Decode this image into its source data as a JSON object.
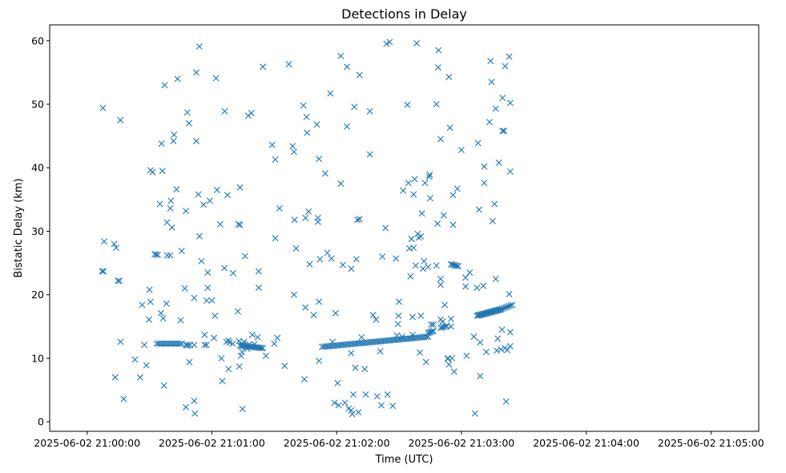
{
  "chart_data": {
    "type": "scatter",
    "title": "Detections in Delay",
    "xlabel": "Time (UTC)",
    "ylabel": "Bistatic Delay (km)",
    "marker": "x",
    "color": "#1f77b4",
    "grid": false,
    "xlim_seconds": [
      -18,
      323
    ],
    "ylim": [
      -1.5,
      62.5
    ],
    "x_ticks": [
      {
        "t": 0,
        "label": "2025-06-02 21:00:00"
      },
      {
        "t": 60,
        "label": "2025-06-02 21:01:00"
      },
      {
        "t": 120,
        "label": "2025-06-02 21:02:00"
      },
      {
        "t": 180,
        "label": "2025-06-02 21:03:00"
      },
      {
        "t": 240,
        "label": "2025-06-02 21:04:00"
      },
      {
        "t": 300,
        "label": "2025-06-02 21:05:00"
      }
    ],
    "y_ticks": [
      0,
      10,
      20,
      30,
      40,
      50,
      60
    ],
    "points": [
      [
        7.6,
        49.4
      ],
      [
        7.2,
        23.7
      ],
      [
        7.9,
        23.7
      ],
      [
        8.2,
        28.4
      ],
      [
        13,
        28
      ],
      [
        14,
        27.4
      ],
      [
        16,
        47.5
      ],
      [
        14.8,
        22.2
      ],
      [
        15.6,
        22.2
      ],
      [
        16.1,
        12.6
      ],
      [
        13.5,
        7
      ],
      [
        17.6,
        3.6
      ],
      [
        23,
        9.8
      ],
      [
        25.5,
        7
      ],
      [
        26.5,
        18.4
      ],
      [
        27.5,
        12.1
      ],
      [
        28.5,
        8.9
      ],
      [
        30,
        20.8
      ],
      [
        30.5,
        18.9
      ],
      [
        29.8,
        16.1
      ],
      [
        30.5,
        39.6
      ],
      [
        31.5,
        39.3
      ],
      [
        32.5,
        26.4
      ],
      [
        33.2,
        26.3
      ],
      [
        34,
        26.3
      ],
      [
        35,
        34.3
      ],
      [
        35.5,
        17.1
      ],
      [
        35.8,
        43.8
      ],
      [
        36.2,
        39.5
      ],
      [
        36.6,
        16.3
      ],
      [
        37,
        5.7
      ],
      [
        37.3,
        53
      ],
      [
        38.5,
        26.2
      ],
      [
        38.4,
        31.4
      ],
      [
        38.2,
        18.6
      ],
      [
        40,
        26.2
      ],
      [
        40,
        33.6
      ],
      [
        40.3,
        34.8
      ],
      [
        40.8,
        30.6
      ],
      [
        41.5,
        44.2
      ],
      [
        41.8,
        45.2
      ],
      [
        43,
        36.6
      ],
      [
        43.5,
        54
      ],
      [
        45,
        16
      ],
      [
        45.5,
        26.9
      ],
      [
        47,
        21
      ],
      [
        47.5,
        33.2
      ],
      [
        47.5,
        2.3
      ],
      [
        48,
        12
      ],
      [
        48.2,
        48.7
      ],
      [
        49,
        47
      ],
      [
        49.2,
        9.4
      ],
      [
        51.5,
        19.5
      ],
      [
        51.5,
        3.3
      ],
      [
        51.8,
        1.3
      ],
      [
        51.5,
        12.1
      ],
      [
        52.5,
        55
      ],
      [
        52.5,
        44.2
      ],
      [
        53.5,
        35.8
      ],
      [
        54,
        29.2
      ],
      [
        54,
        59.1
      ],
      [
        55,
        25.3
      ],
      [
        56,
        34.2
      ],
      [
        56.5,
        13.7
      ],
      [
        56.5,
        12.1
      ],
      [
        57.5,
        12.1
      ],
      [
        57.5,
        19.1
      ],
      [
        58,
        21.1
      ],
      [
        58,
        23.5
      ],
      [
        59,
        34.8
      ],
      [
        60,
        19.1
      ],
      [
        61,
        13.2
      ],
      [
        61.5,
        16.7
      ],
      [
        62,
        54.1
      ],
      [
        62.5,
        36.5
      ],
      [
        64,
        31.1
      ],
      [
        64.6,
        10
      ],
      [
        65,
        6.4
      ],
      [
        66,
        24.2
      ],
      [
        66.2,
        48.9
      ],
      [
        67,
        12.6
      ],
      [
        68,
        12.8
      ],
      [
        67.5,
        35.7
      ],
      [
        68,
        8.3
      ],
      [
        68.5,
        12.5
      ],
      [
        70,
        12.3
      ],
      [
        70.2,
        23.4
      ],
      [
        72.5,
        17.4
      ],
      [
        72.8,
        31.1
      ],
      [
        73,
        12.7
      ],
      [
        73.5,
        36.9
      ],
      [
        73.5,
        31
      ],
      [
        73.2,
        8.7
      ],
      [
        74.7,
        2
      ],
      [
        74,
        10.4
      ],
      [
        74.5,
        11
      ],
      [
        75,
        12.2
      ],
      [
        75.5,
        12.6
      ],
      [
        76,
        26.1
      ],
      [
        77,
        11.5
      ],
      [
        77.5,
        48.2
      ],
      [
        78,
        12.2
      ],
      [
        79,
        48.6
      ],
      [
        79.5,
        13.7
      ],
      [
        80.5,
        12.2
      ],
      [
        82,
        13.3
      ],
      [
        82.5,
        23.7
      ],
      [
        82.5,
        21.1
      ],
      [
        84.5,
        55.9
      ],
      [
        86,
        10.4
      ],
      [
        89,
        43.6
      ],
      [
        90,
        12.3
      ],
      [
        90.5,
        41.3
      ],
      [
        90.5,
        28.9
      ],
      [
        91.5,
        13.2
      ],
      [
        92.5,
        33.6
      ],
      [
        95,
        8.8
      ],
      [
        97,
        56.3
      ],
      [
        98.8,
        43.4
      ],
      [
        99.5,
        42.5
      ],
      [
        99.5,
        20
      ],
      [
        99.8,
        31.8
      ],
      [
        100.5,
        27.3
      ],
      [
        104,
        49.8
      ],
      [
        104.5,
        6.7
      ],
      [
        105,
        32.1
      ],
      [
        105,
        18
      ],
      [
        105.5,
        48
      ],
      [
        105.8,
        45.5
      ],
      [
        106.5,
        33.1
      ],
      [
        107,
        24.8
      ],
      [
        109,
        16.8
      ],
      [
        110.5,
        46.8
      ],
      [
        111,
        32.1
      ],
      [
        111,
        31.5
      ],
      [
        111.5,
        41.4
      ],
      [
        111.5,
        18.9
      ],
      [
        111.5,
        9.6
      ],
      [
        112,
        25.6
      ],
      [
        114.5,
        39.1
      ],
      [
        115.5,
        26.6
      ],
      [
        117,
        51.7
      ],
      [
        117.5,
        25.7
      ],
      [
        118,
        12.6
      ],
      [
        119.5,
        17.1
      ],
      [
        120.5,
        6.1
      ],
      [
        122,
        57.6
      ],
      [
        122,
        37.5
      ],
      [
        123,
        24.7
      ],
      [
        125,
        55.9
      ],
      [
        125,
        46.5
      ],
      [
        127,
        24.1
      ],
      [
        127,
        10.8
      ],
      [
        128,
        4.3
      ],
      [
        128.5,
        49.6
      ],
      [
        129,
        8.5
      ],
      [
        129.5,
        25.6
      ],
      [
        130,
        31.8
      ],
      [
        131,
        54.6
      ],
      [
        131,
        31.9
      ],
      [
        132,
        13.3
      ],
      [
        133.5,
        8.3
      ],
      [
        134,
        4.3
      ],
      [
        136,
        42.1
      ],
      [
        136,
        48.9
      ],
      [
        137.5,
        16.8
      ],
      [
        139,
        16.1
      ],
      [
        139.5,
        4
      ],
      [
        141,
        11.1
      ],
      [
        141.5,
        2.6
      ],
      [
        142,
        26
      ],
      [
        143.5,
        30.5
      ],
      [
        144,
        59.5
      ],
      [
        144.5,
        4.3
      ],
      [
        145.5,
        59.8
      ],
      [
        147,
        2.5
      ],
      [
        148.5,
        25.7
      ],
      [
        149,
        13.6
      ],
      [
        149.5,
        15.4
      ],
      [
        149.8,
        16.7
      ],
      [
        150,
        18.9
      ],
      [
        151.5,
        13.4
      ],
      [
        152,
        36.4
      ],
      [
        154,
        49.9
      ],
      [
        154.5,
        37.6
      ],
      [
        155,
        27.3
      ],
      [
        155.5,
        22.9
      ],
      [
        156,
        28.8
      ],
      [
        156.5,
        13.7
      ],
      [
        156.5,
        16.5
      ],
      [
        157,
        35.8
      ],
      [
        157,
        27.4
      ],
      [
        157.5,
        38.2
      ],
      [
        158,
        24.6
      ],
      [
        158.5,
        59.6
      ],
      [
        159,
        29.6
      ],
      [
        159.5,
        29
      ],
      [
        160,
        10.9
      ],
      [
        160.5,
        29.2
      ],
      [
        160.5,
        16.7
      ],
      [
        161,
        32.8
      ],
      [
        161.5,
        24.1
      ],
      [
        162,
        25.3
      ],
      [
        162.5,
        37.6
      ],
      [
        163,
        9.4
      ],
      [
        164,
        24.4
      ],
      [
        164.5,
        38.6
      ],
      [
        164.8,
        38.9
      ],
      [
        165,
        35.2
      ],
      [
        165.5,
        15.3
      ],
      [
        166.5,
        15.3
      ],
      [
        168,
        50
      ],
      [
        168,
        24.6
      ],
      [
        169,
        58.5
      ],
      [
        168.8,
        55.8
      ],
      [
        168.5,
        31.2
      ],
      [
        170,
        44.5
      ],
      [
        170,
        22.5
      ],
      [
        170,
        21.6
      ],
      [
        170,
        16.1
      ],
      [
        171,
        15.8
      ],
      [
        171.5,
        32.5
      ],
      [
        172,
        18.4
      ],
      [
        173,
        15.1
      ],
      [
        173.5,
        9.9
      ],
      [
        173.5,
        10
      ],
      [
        174,
        54.3
      ],
      [
        174,
        9
      ],
      [
        174.5,
        46.3
      ],
      [
        175,
        16.2
      ],
      [
        175,
        15
      ],
      [
        175.5,
        10
      ],
      [
        176,
        31
      ],
      [
        176,
        35.7
      ],
      [
        176.5,
        7.9
      ],
      [
        178,
        36.7
      ],
      [
        180,
        42.8
      ],
      [
        182,
        22.7
      ],
      [
        182,
        21.3
      ],
      [
        182.5,
        10.4
      ],
      [
        184,
        23.5
      ],
      [
        186,
        13.4
      ],
      [
        187.5,
        21.1
      ],
      [
        188,
        43.9
      ],
      [
        188.5,
        33.4
      ],
      [
        189,
        12.5
      ],
      [
        189,
        7.2
      ],
      [
        190.5,
        21.4
      ],
      [
        191,
        40.2
      ],
      [
        191,
        37.6
      ],
      [
        192,
        11
      ],
      [
        193.5,
        47.2
      ],
      [
        194,
        56.8
      ],
      [
        194.5,
        53.5
      ],
      [
        195,
        31.6
      ],
      [
        196,
        34.3
      ],
      [
        196.5,
        49.3
      ],
      [
        196.5,
        22.5
      ],
      [
        197,
        11.2
      ],
      [
        197.5,
        13.1
      ],
      [
        198,
        40.8
      ],
      [
        199,
        11.4
      ],
      [
        199.5,
        14.5
      ],
      [
        199.8,
        51
      ],
      [
        199.8,
        45.8
      ],
      [
        200.5,
        45.8
      ],
      [
        201,
        56
      ],
      [
        201,
        11.6
      ],
      [
        201.5,
        3.2
      ],
      [
        202,
        11.3
      ],
      [
        203,
        57.5
      ],
      [
        203,
        20.1
      ],
      [
        203.5,
        14.1
      ],
      [
        203.5,
        11.9
      ],
      [
        203.5,
        50.2
      ],
      [
        203.5,
        39.4
      ]
    ],
    "tracks": [
      {
        "t_start": 33.5,
        "t_end": 45.5,
        "y_start": 12.3,
        "y_end": 12.3,
        "n": 14
      },
      {
        "t_start": 47.5,
        "t_end": 49.5,
        "y_start": 12.1,
        "y_end": 12.1,
        "n": 3
      },
      {
        "t_start": 73.5,
        "t_end": 84.5,
        "y_start": 12.0,
        "y_end": 11.6,
        "n": 16
      },
      {
        "t_start": 113,
        "t_end": 164,
        "y_start": 11.8,
        "y_end": 13.4,
        "n": 55
      },
      {
        "t_start": 164,
        "t_end": 166.5,
        "y_start": 14.0,
        "y_end": 14.3,
        "n": 5
      },
      {
        "t_start": 170,
        "t_end": 172.5,
        "y_start": 14.8,
        "y_end": 15.0,
        "n": 4
      },
      {
        "t_start": 175,
        "t_end": 178.5,
        "y_start": 24.8,
        "y_end": 24.5,
        "n": 6
      },
      {
        "t_start": 187.5,
        "t_end": 199,
        "y_start": 16.7,
        "y_end": 17.7,
        "n": 24
      },
      {
        "t_start": 199.5,
        "t_end": 204.5,
        "y_start": 17.8,
        "y_end": 18.4,
        "n": 7
      },
      {
        "t_start": 119,
        "t_end": 121,
        "y_start": 3.0,
        "y_end": 2.6,
        "n": 2
      },
      {
        "t_start": 124,
        "t_end": 127.5,
        "y_start": 3.0,
        "y_end": 1.2,
        "n": 3
      },
      {
        "t_start": 127,
        "t_end": 130.5,
        "y_start": 1.8,
        "y_end": 1.5,
        "n": 2
      },
      {
        "t_start": 186.5,
        "t_end": 187,
        "y_start": 1.3,
        "y_end": 1.3,
        "n": 1
      }
    ]
  }
}
